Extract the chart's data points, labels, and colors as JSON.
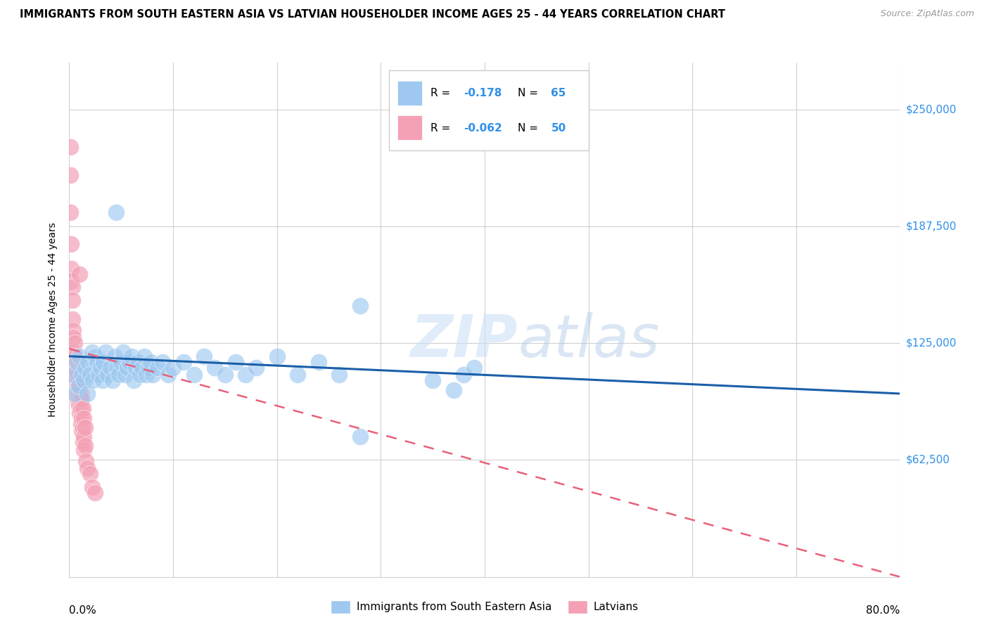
{
  "title": "IMMIGRANTS FROM SOUTH EASTERN ASIA VS LATVIAN HOUSEHOLDER INCOME AGES 25 - 44 YEARS CORRELATION CHART",
  "source": "Source: ZipAtlas.com",
  "ylabel": "Householder Income Ages 25 - 44 years",
  "ytick_labels": [
    "$62,500",
    "$125,000",
    "$187,500",
    "$250,000"
  ],
  "ytick_values": [
    62500,
    125000,
    187500,
    250000
  ],
  "ylim": [
    0,
    275000
  ],
  "xlim": [
    0.0,
    0.8
  ],
  "blue_color": "#9ec8f0",
  "pink_color": "#f4a0b5",
  "blue_line_color": "#1a5fa8",
  "pink_line_color": "#e8607a",
  "watermark_zip": "ZIP",
  "watermark_atlas": "atlas",
  "blue_scatter": [
    [
      0.003,
      108000
    ],
    [
      0.005,
      98000
    ],
    [
      0.007,
      115000
    ],
    [
      0.009,
      102000
    ],
    [
      0.01,
      118000
    ],
    [
      0.012,
      108000
    ],
    [
      0.014,
      105000
    ],
    [
      0.015,
      112000
    ],
    [
      0.017,
      98000
    ],
    [
      0.018,
      115000
    ],
    [
      0.02,
      108000
    ],
    [
      0.022,
      120000
    ],
    [
      0.023,
      105000
    ],
    [
      0.025,
      118000
    ],
    [
      0.027,
      115000
    ],
    [
      0.028,
      108000
    ],
    [
      0.03,
      112000
    ],
    [
      0.032,
      105000
    ],
    [
      0.033,
      115000
    ],
    [
      0.035,
      120000
    ],
    [
      0.037,
      108000
    ],
    [
      0.04,
      112000
    ],
    [
      0.042,
      105000
    ],
    [
      0.044,
      118000
    ],
    [
      0.046,
      112000
    ],
    [
      0.048,
      108000
    ],
    [
      0.05,
      115000
    ],
    [
      0.052,
      120000
    ],
    [
      0.054,
      108000
    ],
    [
      0.056,
      112000
    ],
    [
      0.058,
      115000
    ],
    [
      0.06,
      118000
    ],
    [
      0.062,
      105000
    ],
    [
      0.064,
      112000
    ],
    [
      0.066,
      115000
    ],
    [
      0.068,
      108000
    ],
    [
      0.07,
      112000
    ],
    [
      0.072,
      118000
    ],
    [
      0.074,
      108000
    ],
    [
      0.076,
      112000
    ],
    [
      0.078,
      115000
    ],
    [
      0.08,
      108000
    ],
    [
      0.085,
      112000
    ],
    [
      0.09,
      115000
    ],
    [
      0.095,
      108000
    ],
    [
      0.1,
      112000
    ],
    [
      0.11,
      115000
    ],
    [
      0.12,
      108000
    ],
    [
      0.13,
      118000
    ],
    [
      0.14,
      112000
    ],
    [
      0.15,
      108000
    ],
    [
      0.16,
      115000
    ],
    [
      0.17,
      108000
    ],
    [
      0.18,
      112000
    ],
    [
      0.2,
      118000
    ],
    [
      0.22,
      108000
    ],
    [
      0.24,
      115000
    ],
    [
      0.26,
      108000
    ],
    [
      0.045,
      195000
    ],
    [
      0.28,
      145000
    ],
    [
      0.35,
      105000
    ],
    [
      0.37,
      100000
    ],
    [
      0.38,
      108000
    ],
    [
      0.39,
      112000
    ],
    [
      0.28,
      75000
    ]
  ],
  "pink_scatter": [
    [
      0.001,
      230000
    ],
    [
      0.001,
      215000
    ],
    [
      0.001,
      195000
    ],
    [
      0.002,
      178000
    ],
    [
      0.002,
      165000
    ],
    [
      0.002,
      158000
    ],
    [
      0.003,
      155000
    ],
    [
      0.003,
      148000
    ],
    [
      0.003,
      138000
    ],
    [
      0.004,
      132000
    ],
    [
      0.004,
      128000
    ],
    [
      0.004,
      120000
    ],
    [
      0.005,
      125000
    ],
    [
      0.005,
      118000
    ],
    [
      0.005,
      112000
    ],
    [
      0.006,
      115000
    ],
    [
      0.006,
      108000
    ],
    [
      0.006,
      105000
    ],
    [
      0.007,
      110000
    ],
    [
      0.007,
      105000
    ],
    [
      0.007,
      98000
    ],
    [
      0.008,
      108000
    ],
    [
      0.008,
      102000
    ],
    [
      0.008,
      95000
    ],
    [
      0.009,
      105000
    ],
    [
      0.009,
      98000
    ],
    [
      0.009,
      92000
    ],
    [
      0.01,
      102000
    ],
    [
      0.01,
      95000
    ],
    [
      0.01,
      88000
    ],
    [
      0.011,
      98000
    ],
    [
      0.011,
      90000
    ],
    [
      0.011,
      82000
    ],
    [
      0.012,
      95000
    ],
    [
      0.012,
      85000
    ],
    [
      0.012,
      78000
    ],
    [
      0.013,
      90000
    ],
    [
      0.013,
      80000
    ],
    [
      0.013,
      72000
    ],
    [
      0.014,
      85000
    ],
    [
      0.014,
      75000
    ],
    [
      0.014,
      68000
    ],
    [
      0.015,
      80000
    ],
    [
      0.015,
      70000
    ],
    [
      0.016,
      62000
    ],
    [
      0.017,
      58000
    ],
    [
      0.02,
      55000
    ],
    [
      0.022,
      48000
    ],
    [
      0.025,
      45000
    ],
    [
      0.01,
      162000
    ]
  ],
  "blue_line": {
    "x0": 0.0,
    "x1": 0.8,
    "y0": 118000,
    "y1": 98000
  },
  "pink_line": {
    "x0": 0.0,
    "x1": 0.8,
    "y0": 122000,
    "y1": 0
  }
}
